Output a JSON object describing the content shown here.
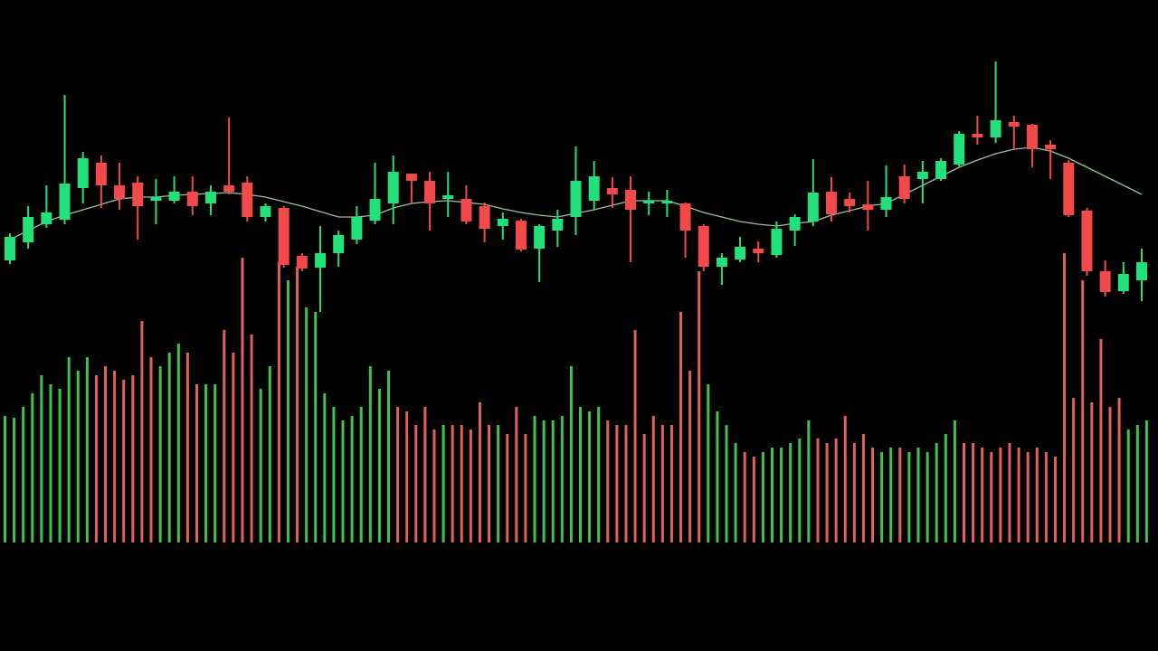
{
  "chart_data": [
    {
      "type": "candlestick",
      "up_color": "#22e07a",
      "down_color": "#f24a4a",
      "ylim": [
        0,
        720
      ],
      "open": [
        432,
        452,
        472,
        477,
        512,
        540,
        515,
        518,
        498,
        498,
        508,
        495,
        515,
        518,
        480,
        490,
        437,
        424,
        440,
        455,
        476,
        495,
        528,
        520,
        500,
        500,
        492,
        470,
        476,
        445,
        465,
        480,
        498,
        512,
        510,
        495,
        495,
        495,
        470,
        425,
        433,
        445,
        438,
        465,
        475,
        508,
        500,
        494,
        488,
        525,
        522,
        522,
        538,
        572,
        568,
        585,
        582,
        560,
        540,
        487,
        420,
        398,
        410
      ],
      "high": [
        462,
        492,
        515,
        615,
        552,
        548,
        540,
        525,
        522,
        525,
        525,
        515,
        590,
        525,
        495,
        492,
        440,
        470,
        465,
        492,
        540,
        548,
        528,
        530,
        530,
        515,
        496,
        485,
        478,
        472,
        488,
        558,
        542,
        524,
        525,
        508,
        510,
        496,
        472,
        440,
        458,
        453,
        475,
        483,
        544,
        524,
        507,
        520,
        537,
        538,
        542,
        545,
        575,
        592,
        652,
        592,
        583,
        565,
        543,
        490,
        432,
        430,
        445
      ],
      "low": [
        428,
        445,
        468,
        472,
        495,
        490,
        488,
        455,
        472,
        495,
        482,
        482,
        505,
        475,
        475,
        424,
        420,
        375,
        425,
        450,
        472,
        472,
        495,
        465,
        480,
        472,
        452,
        455,
        442,
        408,
        447,
        460,
        488,
        490,
        430,
        482,
        480,
        435,
        420,
        405,
        430,
        430,
        435,
        448,
        470,
        475,
        485,
        465,
        480,
        495,
        495,
        520,
        535,
        560,
        562,
        555,
        535,
        522,
        480,
        415,
        392,
        395,
        387
      ],
      "close": [
        458,
        480,
        485,
        517,
        545,
        515,
        500,
        492,
        502,
        508,
        492,
        508,
        508,
        480,
        492,
        427,
        423,
        440,
        460,
        480,
        500,
        530,
        520,
        495,
        504,
        475,
        467,
        478,
        444,
        470,
        478,
        520,
        525,
        505,
        488,
        498,
        498,
        465,
        425,
        435,
        447,
        440,
        467,
        480,
        507,
        483,
        492,
        488,
        502,
        500,
        530,
        542,
        572,
        568,
        587,
        580,
        555,
        555,
        482,
        420,
        397,
        417,
        430
      ],
      "moving_average": {
        "color": "#9fbf9f",
        "values": [
          455,
          465,
          475,
          482,
          488,
          494,
          500,
          502,
          502,
          504,
          505,
          506,
          507,
          505,
          502,
          497,
          492,
          486,
          480,
          480,
          482,
          490,
          495,
          497,
          498,
          496,
          494,
          489,
          485,
          482,
          480,
          484,
          488,
          493,
          498,
          498,
          498,
          492,
          485,
          480,
          475,
          472,
          470,
          473,
          475,
          482,
          487,
          492,
          495,
          505,
          515,
          525,
          535,
          543,
          550,
          555,
          557,
          553,
          545,
          535,
          525,
          515,
          505
        ]
      }
    },
    {
      "type": "bar",
      "ylim": [
        0,
        600
      ],
      "values": [
        140,
        138,
        150,
        165,
        185,
        175,
        170,
        205,
        190,
        205,
        185,
        195,
        190,
        180,
        185,
        245,
        205,
        195,
        210,
        220,
        210,
        175,
        175,
        175,
        235,
        210,
        315,
        230,
        170,
        195,
        310,
        290,
        305,
        260,
        255,
        165,
        150,
        135,
        140,
        150,
        195,
        170,
        190,
        150,
        145,
        130,
        150,
        125,
        130,
        130,
        130,
        125,
        155,
        130,
        130,
        120,
        150,
        120,
        140,
        135,
        135,
        140,
        195,
        150,
        145,
        150,
        135,
        130,
        130,
        235,
        120,
        140,
        130,
        130,
        255,
        190,
        300,
        175,
        145,
        130,
        110,
        100,
        95,
        100,
        105,
        105,
        110,
        115,
        135,
        115,
        110,
        115,
        140,
        110,
        120,
        105,
        100,
        105,
        105,
        100,
        105,
        100,
        110,
        120,
        135,
        110,
        110,
        105,
        100,
        105,
        110,
        105,
        100,
        105,
        100,
        95,
        320,
        160,
        290,
        155,
        225,
        150,
        160,
        125,
        130,
        135
      ],
      "colors": [
        "#3fc24f",
        "#3fc24f",
        "#3fc24f",
        "#3fc24f",
        "#3fc24f",
        "#3fc24f",
        "#3fc24f",
        "#3fc24f",
        "#3fc24f",
        "#3fc24f",
        "#e0605a",
        "#e0605a",
        "#e0605a",
        "#e0605a",
        "#e0605a",
        "#e0605a",
        "#e0605a",
        "#3fc24f",
        "#3fc24f",
        "#3fc24f",
        "#e0605a",
        "#e0605a",
        "#3fc24f",
        "#3fc24f",
        "#e0605a",
        "#e0605a",
        "#e0605a",
        "#e0605a",
        "#3fc24f",
        "#3fc24f",
        "#e0605a",
        "#3fc24f",
        "#e0605a",
        "#3fc24f",
        "#3fc24f",
        "#3fc24f",
        "#3fc24f",
        "#3fc24f",
        "#3fc24f",
        "#3fc24f",
        "#3fc24f",
        "#3fc24f",
        "#3fc24f",
        "#e0605a",
        "#e0605a",
        "#e0605a",
        "#e0605a",
        "#e0605a",
        "#3fc24f",
        "#e0605a",
        "#e0605a",
        "#e0605a",
        "#e0605a",
        "#e0605a",
        "#3fc24f",
        "#e0605a",
        "#e0605a",
        "#e0605a",
        "#3fc24f",
        "#3fc24f",
        "#3fc24f",
        "#3fc24f",
        "#3fc24f",
        "#3fc24f",
        "#3fc24f",
        "#3fc24f",
        "#e0605a",
        "#e0605a",
        "#e0605a",
        "#e0605a",
        "#e0605a",
        "#e0605a",
        "#e0605a",
        "#e0605a",
        "#e0605a",
        "#e0605a",
        "#e0605a",
        "#3fc24f",
        "#3fc24f",
        "#3fc24f",
        "#3fc24f",
        "#e0605a",
        "#e0605a",
        "#3fc24f",
        "#3fc24f",
        "#3fc24f",
        "#3fc24f",
        "#3fc24f",
        "#3fc24f",
        "#e0605a",
        "#e0605a",
        "#e0605a",
        "#e0605a",
        "#e0605a",
        "#e0605a",
        "#e0605a",
        "#3fc24f",
        "#3fc24f",
        "#e0605a",
        "#3fc24f",
        "#3fc24f",
        "#3fc24f",
        "#3fc24f",
        "#3fc24f",
        "#3fc24f",
        "#e0605a",
        "#e0605a",
        "#e0605a",
        "#e0605a",
        "#e0605a",
        "#e0605a",
        "#e0605a",
        "#e0605a",
        "#e0605a",
        "#e0605a",
        "#e0605a",
        "#e0605a",
        "#e0605a",
        "#e0605a",
        "#e0605a",
        "#e0605a",
        "#e0605a",
        "#e0605a",
        "#3fc24f",
        "#3fc24f",
        "#3fc24f"
      ]
    }
  ]
}
